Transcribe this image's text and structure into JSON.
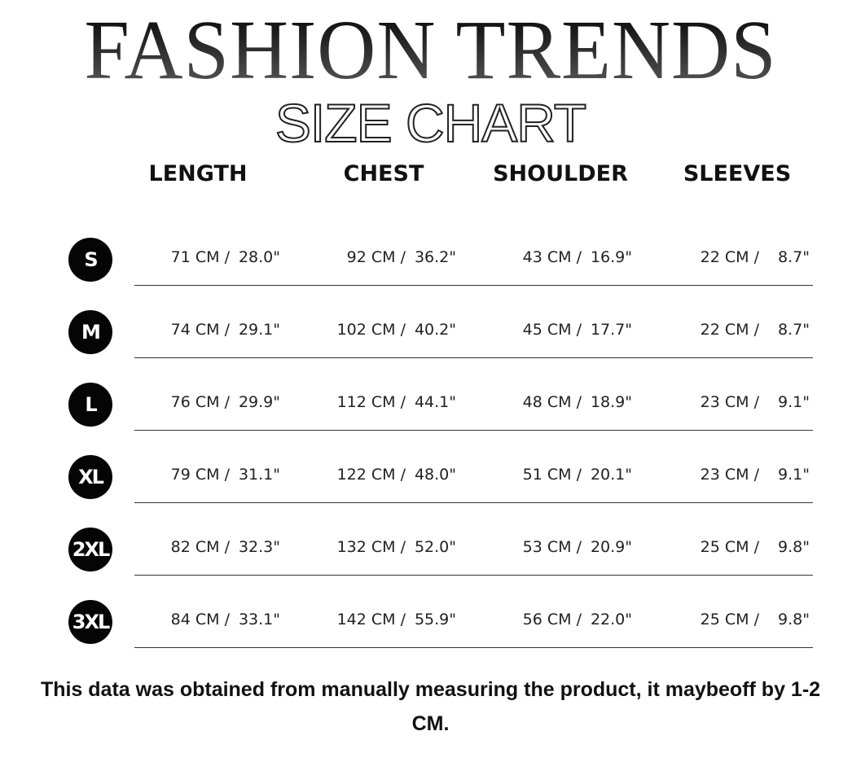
{
  "title": {
    "brand": "FASHION TRENDS",
    "subtitle": "SIZE CHART"
  },
  "headers": [
    "LENGTH",
    "CHEST",
    "SHOULDER",
    "SLEEVES"
  ],
  "rows": [
    {
      "size": "S",
      "cells": [
        {
          "cm": "71 CM /",
          "in": "28.0\""
        },
        {
          "cm": "92 CM /",
          "in": "36.2\""
        },
        {
          "cm": "43 CM /",
          "in": "16.9\""
        },
        {
          "cm": "22 CM /",
          "in": "8.7\""
        }
      ]
    },
    {
      "size": "M",
      "cells": [
        {
          "cm": "74 CM /",
          "in": "29.1\""
        },
        {
          "cm": "102 CM /",
          "in": "40.2\""
        },
        {
          "cm": "45 CM /",
          "in": "17.7\""
        },
        {
          "cm": "22 CM /",
          "in": "8.7\""
        }
      ]
    },
    {
      "size": "L",
      "cells": [
        {
          "cm": "76 CM /",
          "in": "29.9\""
        },
        {
          "cm": "112 CM /",
          "in": "44.1\""
        },
        {
          "cm": "48 CM /",
          "in": "18.9\""
        },
        {
          "cm": "23 CM /",
          "in": "9.1\""
        }
      ]
    },
    {
      "size": "XL",
      "cells": [
        {
          "cm": "79 CM /",
          "in": "31.1\""
        },
        {
          "cm": "122 CM /",
          "in": "48.0\""
        },
        {
          "cm": "51 CM /",
          "in": "20.1\""
        },
        {
          "cm": "23 CM /",
          "in": "9.1\""
        }
      ]
    },
    {
      "size": "2XL",
      "cells": [
        {
          "cm": "82 CM /",
          "in": "32.3\""
        },
        {
          "cm": "132 CM /",
          "in": "52.0\""
        },
        {
          "cm": "53 CM /",
          "in": "20.9\""
        },
        {
          "cm": "25 CM /",
          "in": "9.8\""
        }
      ]
    },
    {
      "size": "3XL",
      "cells": [
        {
          "cm": "84 CM /",
          "in": "33.1\""
        },
        {
          "cm": "142 CM /",
          "in": "55.9\""
        },
        {
          "cm": "56 CM /",
          "in": "22.0\""
        },
        {
          "cm": "25 CM /",
          "in": "9.8\""
        }
      ]
    }
  ],
  "note": "This data was obtained from manually measuring the product, it maybeoff by 1-2 CM."
}
